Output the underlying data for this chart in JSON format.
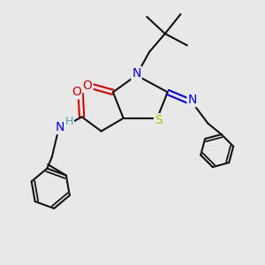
{
  "bg_color": "#e8e8e8",
  "atom_colors": {
    "N": "#0000ee",
    "O": "#dd0000",
    "S": "#bbbb00",
    "C": "#111111",
    "H": "#44aaaa"
  },
  "bond_color": "#111111",
  "bond_lw": 1.5,
  "font_size_atom": 10
}
